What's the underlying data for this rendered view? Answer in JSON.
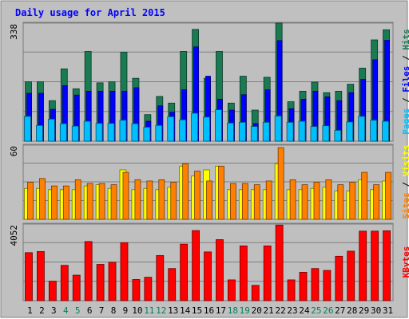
{
  "chart_data": {
    "type": "bar",
    "title": "Daily usage for April 2015",
    "categories": [
      "1",
      "2",
      "3",
      "4",
      "5",
      "6",
      "7",
      "8",
      "9",
      "10",
      "11",
      "12",
      "13",
      "14",
      "15",
      "16",
      "17",
      "18",
      "19",
      "20",
      "21",
      "22",
      "23",
      "24",
      "25",
      "26",
      "27",
      "28",
      "29",
      "30",
      "31"
    ],
    "weekend_days": [
      "4",
      "5",
      "11",
      "12",
      "18",
      "19",
      "25",
      "26"
    ],
    "panels": {
      "top": {
        "ymax_label": "338",
        "ylim": [
          0,
          338
        ],
        "legend": [
          "Pages",
          "Files",
          "Hits"
        ],
        "legend_separator": " / ",
        "series": [
          {
            "name": "Hits",
            "color": "#1a7a52",
            "values": [
              170,
              170,
              116,
              207,
              150,
              257,
              167,
              170,
              255,
              180,
              76,
              128,
              109,
              257,
              320,
              180,
              257,
              109,
              186,
              89,
              183,
              350,
              113,
              143,
              169,
              139,
              143,
              163,
              209,
              290,
              319
            ]
          },
          {
            "name": "Files",
            "color": "#0000ff",
            "values": [
              137,
              137,
              91,
              159,
              132,
              143,
              143,
              143,
              143,
              153,
              57,
              101,
              83,
              147,
              270,
              186,
              120,
              89,
              133,
              50,
              147,
              288,
              93,
              120,
              143,
              127,
              116,
              139,
              177,
              233,
              289
            ]
          },
          {
            "name": "Pages",
            "color": "#00bfff",
            "values": [
              71,
              45,
              63,
              50,
              43,
              57,
              51,
              51,
              60,
              50,
              40,
              45,
              70,
              61,
              80,
              69,
              90,
              52,
              54,
              42,
              54,
              72,
              54,
              57,
              42,
              44,
              31,
              55,
              71,
              60,
              57
            ]
          }
        ]
      },
      "middle": {
        "ymax_label": "60",
        "ylim": [
          0,
          60
        ],
        "legend": [
          "Sites",
          "Visits"
        ],
        "legend_separator": " / ",
        "series": [
          {
            "name": "Visits",
            "color": "#ffff00",
            "values": [
              25,
              25,
              24,
              24,
              24,
              27,
              28,
              25,
              40,
              24,
              25,
              24,
              26,
              43,
              35,
              40,
              43,
              24,
              24,
              24,
              24,
              45,
              24,
              24,
              25,
              26,
              23,
              23,
              32,
              24,
              31
            ]
          },
          {
            "name": "Sites",
            "color": "#ff8000",
            "values": [
              30,
              33,
              27,
              27,
              32,
              29,
              29,
              28,
              38,
              32,
              31,
              32,
              30,
              45,
              39,
              31,
              43,
              29,
              29,
              28,
              31,
              58,
              32,
              28,
              30,
              32,
              28,
              30,
              38,
              28,
              38
            ]
          }
        ]
      },
      "bottom": {
        "ymax_label": "4052",
        "ylim": [
          0,
          4052
        ],
        "legend": [
          "KBytes"
        ],
        "series": [
          {
            "name": "KBytes",
            "color": "#ff0000",
            "values": [
              2540,
              2600,
              1030,
              1870,
              1350,
              3130,
              1920,
              2030,
              3070,
              1120,
              1240,
              2390,
              1700,
              2990,
              3710,
              2580,
              3230,
              1100,
              2900,
              810,
              2900,
              4000,
              1100,
              1500,
              1700,
              1600,
              2350,
              2620,
              3680,
              3680,
              3700
            ]
          }
        ]
      }
    },
    "colors": {
      "background": "#ffffff",
      "frame": "#c0c0c0",
      "plot_bg": "#bfbfbf",
      "grid": "#808080",
      "title": "#0000ff",
      "weekday_label": "#000000",
      "weekend_label": "#00805c"
    }
  }
}
